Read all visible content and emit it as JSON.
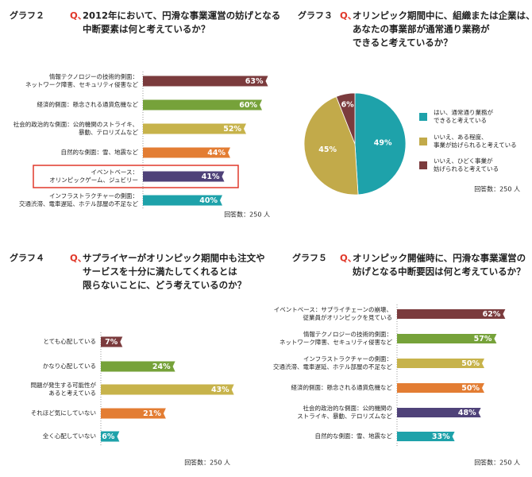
{
  "chart_data": [
    {
      "type": "bar",
      "title": "グラフ２",
      "question_prefix": "Q、",
      "question": [
        "2012年において、円滑な事業運営の妨げとなる",
        "中断要素は何と考えているか？"
      ],
      "categories": [
        [
          "情報テクノロジーの技術的側面：",
          "ネットワーク障害、セキュリティ侵害など"
        ],
        [
          "経済的側面：懸念される通貨危機など"
        ],
        [
          "社会的政治的な側面：公的機関のストライキ、",
          "暴動、テロリズムなど"
        ],
        [
          "自然的な側面：雪、地震など"
        ],
        [
          "イベントベース：",
          "オリンピックゲーム、ジュビリー"
        ],
        [
          "インフラストラクチャーの側面：",
          "交通渋滞、電車遅延、ホテル部屋の不足など"
        ]
      ],
      "values": [
        63,
        60,
        52,
        44,
        41,
        40
      ],
      "value_labels": [
        "63%",
        "60%",
        "52%",
        "44%",
        "41%",
        "40%"
      ],
      "colors": [
        "#7b3b3d",
        "#76a23a",
        "#c7b34b",
        "#e37d33",
        "#4f4279",
        "#1ea2aa"
      ],
      "highlight": [
        false,
        false,
        false,
        false,
        true,
        false
      ],
      "note": "回答数：250 人"
    },
    {
      "type": "pie",
      "title": "グラフ３",
      "question_prefix": "Q、",
      "question": [
        "オリンピック期間中に、組織または企業は、",
        "あなたの事業部が通常通り業務が",
        "できると考えているか？"
      ],
      "categories": [
        [
          "はい、通常通り業務が",
          "できると考えている"
        ],
        [
          "いいえ、ある程度、",
          "事業が妨げられると考えている"
        ],
        [
          "いいえ、ひどく事業が",
          "妨げられると考えている"
        ]
      ],
      "values": [
        49,
        45,
        6
      ],
      "value_labels": [
        "49%",
        "45%",
        "6%"
      ],
      "colors": [
        "#1ea2aa",
        "#c2aa4a",
        "#7b3b3d"
      ],
      "note": "回答数：250 人"
    },
    {
      "type": "bar",
      "title": "グラフ４",
      "question_prefix": "Q、",
      "question": [
        "サプライヤーがオリンピック期間中も注文や",
        "サービスを十分に満たしてくれるとは",
        "限らないことに、どう考えているのか？"
      ],
      "categories": [
        [
          "とても心配している"
        ],
        [
          "かなり心配している"
        ],
        [
          "問題が発生する可能性が",
          "あると考えている"
        ],
        [
          "それほど気にしていない"
        ],
        [
          "全く心配していない"
        ]
      ],
      "values": [
        7,
        24,
        43,
        21,
        6
      ],
      "value_labels": [
        "7%",
        "24%",
        "43%",
        "21%",
        "6%"
      ],
      "colors": [
        "#7b3b3d",
        "#76a23a",
        "#c7b34b",
        "#e37d33",
        "#1ea2aa"
      ],
      "note": "回答数：250 人"
    },
    {
      "type": "bar",
      "title": "グラフ５",
      "question_prefix": "Q、",
      "question": [
        "オリンピック開催時に、円滑な事業運営の",
        "妨げとなる中断要因は何と考えているか？"
      ],
      "categories": [
        [
          "イベントベース：サプライチェーンの崩壊、",
          "従業員がオリンピックを見ている"
        ],
        [
          "情報テクノロジーの技術的側面：",
          "ネットワーク障害、セキュリティ侵害など"
        ],
        [
          "インフラストラクチャーの側面：",
          "交通渋滞、電車遅延、ホテル部屋の不足など"
        ],
        [
          "経済的側面：懸念される通貨危機など"
        ],
        [
          "社会的政治的な側面：公的機関の",
          "ストライキ、暴動、テロリズムなど"
        ],
        [
          "自然的な側面：雪、地震など"
        ]
      ],
      "values": [
        62,
        57,
        50,
        50,
        48,
        33
      ],
      "value_labels": [
        "62%",
        "57%",
        "50%",
        "50%",
        "48%",
        "33%"
      ],
      "colors": [
        "#7b3b3d",
        "#76a23a",
        "#c7b34b",
        "#e37d33",
        "#4f4279",
        "#1ea2aa"
      ],
      "note": "回答数：250 人"
    }
  ]
}
